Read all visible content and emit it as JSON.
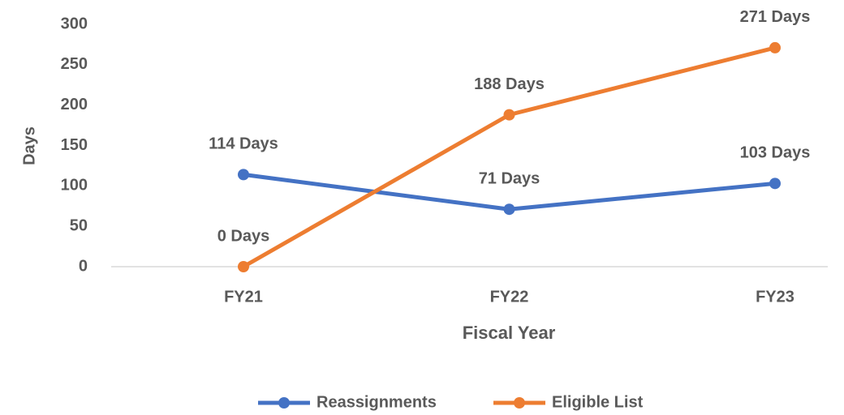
{
  "chart_data": {
    "type": "line",
    "x_label": "Fiscal Year",
    "y_label": "Days",
    "categories": [
      "FY21",
      "FY22",
      "FY23"
    ],
    "series": [
      {
        "name": "Reassignments",
        "color": "#4472c4",
        "values": [
          114,
          71,
          103
        ],
        "value_labels": [
          "114 Days",
          "71 Days",
          "103 Days"
        ]
      },
      {
        "name": "Eligible List",
        "color": "#ed7d31",
        "values": [
          0,
          188,
          271
        ],
        "value_labels": [
          "0 Days",
          "188 Days",
          "271 Days"
        ]
      }
    ],
    "ylim": [
      0,
      300
    ],
    "yticks": [
      0,
      50,
      100,
      150,
      200,
      250,
      300
    ],
    "grid": false,
    "legend": "bottom"
  }
}
